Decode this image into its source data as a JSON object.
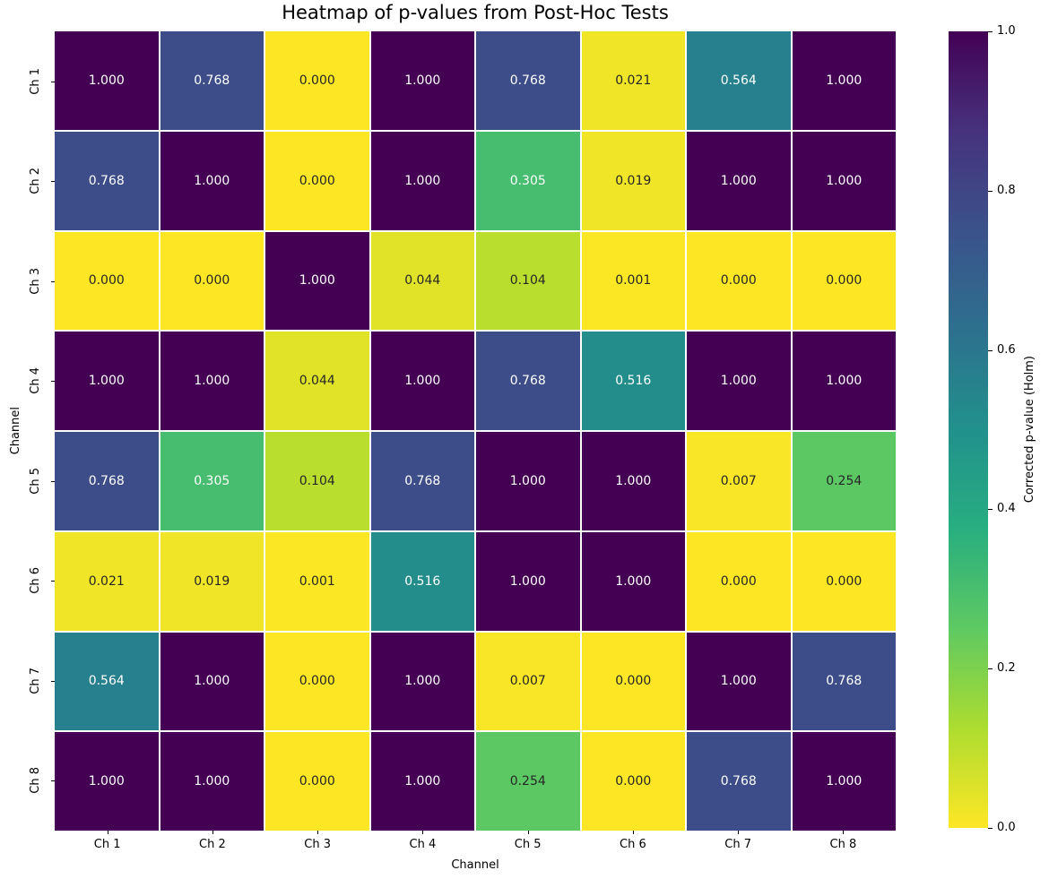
{
  "title": "Heatmap of p-values from Post-Hoc Tests",
  "axes": {
    "xlabel": "Channel",
    "ylabel": "Channel"
  },
  "colorbar": {
    "label": "Corrected p-value (Holm)",
    "ticks": [
      "1.0",
      "0.8",
      "0.6",
      "0.4",
      "0.2",
      "0.0"
    ],
    "vmin": 0.0,
    "vmax": 1.0
  },
  "chart_data": {
    "type": "heatmap",
    "title": "Heatmap of p-values from Post-Hoc Tests",
    "xlabel": "Channel",
    "ylabel": "Channel",
    "x_categories": [
      "Ch 1",
      "Ch 2",
      "Ch 3",
      "Ch 4",
      "Ch 5",
      "Ch 6",
      "Ch 7",
      "Ch 8"
    ],
    "y_categories": [
      "Ch 1",
      "Ch 2",
      "Ch 3",
      "Ch 4",
      "Ch 5",
      "Ch 6",
      "Ch 7",
      "Ch 8"
    ],
    "values": [
      [
        1.0,
        0.768,
        0.0,
        1.0,
        0.768,
        0.021,
        0.564,
        1.0
      ],
      [
        0.768,
        1.0,
        0.0,
        1.0,
        0.305,
        0.019,
        1.0,
        1.0
      ],
      [
        0.0,
        0.0,
        1.0,
        0.044,
        0.104,
        0.001,
        0.0,
        0.0
      ],
      [
        1.0,
        1.0,
        0.044,
        1.0,
        0.768,
        0.516,
        1.0,
        1.0
      ],
      [
        0.768,
        0.305,
        0.104,
        0.768,
        1.0,
        1.0,
        0.007,
        0.254
      ],
      [
        0.021,
        0.019,
        0.001,
        0.516,
        1.0,
        1.0,
        0.0,
        0.0
      ],
      [
        0.564,
        1.0,
        0.0,
        1.0,
        0.007,
        0.0,
        1.0,
        0.768
      ],
      [
        1.0,
        1.0,
        0.0,
        1.0,
        0.254,
        0.0,
        0.768,
        1.0
      ]
    ],
    "value_format": ".3f",
    "colormap": "viridis_r",
    "vmin": 0.0,
    "vmax": 1.0,
    "colorbar_label": "Corrected p-value (Holm)",
    "colorbar_ticks": [
      "1.0",
      "0.8",
      "0.6",
      "0.4",
      "0.2",
      "0.0"
    ],
    "grid": false,
    "legend": false,
    "annotations": true
  },
  "colors": {
    "viridis_anchors": [
      "#440154",
      "#46327e",
      "#3b528b",
      "#2d708e",
      "#21918c",
      "#28ae80",
      "#5ec962",
      "#addc30",
      "#fde725"
    ],
    "annotation_dark": "#262626",
    "annotation_light": "#ffffff",
    "background": "#ffffff",
    "tick_color": "#000000"
  }
}
